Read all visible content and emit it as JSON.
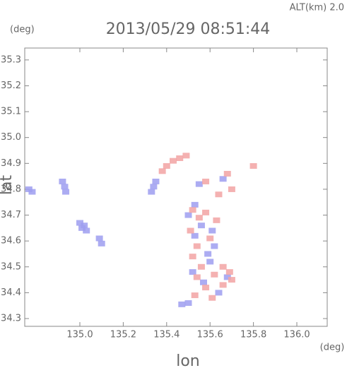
{
  "chart_data": {
    "type": "scatter",
    "title": "2013/05/29 08:51:44",
    "subtitle": "ALT(km) 2.0",
    "x_label": "lon",
    "x_unit": "(deg)",
    "y_label": "lat",
    "y_unit": "(deg)",
    "xlim": [
      134.746,
      136.14
    ],
    "ylim": [
      34.27,
      35.346
    ],
    "xticks": [
      {
        "value": 135.0,
        "label": "135.0"
      },
      135.2,
      135.4,
      135.6,
      135.8,
      {
        "value": 136.0,
        "label": "136.0"
      }
    ],
    "yticks": [
      34.3,
      34.4,
      34.5,
      34.6,
      34.7,
      34.8,
      34.9,
      {
        "value": 35.0,
        "label": "35.0"
      },
      35.1,
      35.2,
      35.3
    ],
    "series": [
      {
        "color": "#9d9df0",
        "x": [
          134.765,
          134.78,
          134.92,
          134.93,
          134.935,
          135.0,
          135.02,
          135.01,
          135.03,
          135.09,
          135.1,
          135.34,
          135.33,
          135.35,
          135.5,
          135.53,
          135.56,
          135.59,
          135.62,
          135.52,
          135.57,
          135.64,
          135.6,
          135.68,
          135.55,
          135.66,
          135.5,
          135.47,
          135.53,
          135.61
        ],
        "values": [
          34.8,
          34.79,
          34.83,
          34.81,
          34.79,
          34.67,
          34.66,
          34.65,
          34.64,
          34.61,
          34.59,
          34.81,
          34.79,
          34.83,
          34.7,
          34.62,
          34.66,
          34.55,
          34.58,
          34.48,
          34.44,
          34.4,
          34.52,
          34.46,
          34.82,
          34.84,
          34.36,
          34.355,
          34.74,
          34.64
        ]
      },
      {
        "color": "#f2a3a3",
        "x": [
          135.4,
          135.43,
          135.46,
          135.38,
          135.49,
          135.52,
          135.55,
          135.58,
          135.51,
          135.54,
          135.6,
          135.63,
          135.52,
          135.56,
          135.62,
          135.66,
          135.69,
          135.58,
          135.61,
          135.66,
          135.7,
          135.54,
          135.58,
          135.68,
          135.64,
          135.7,
          135.8,
          135.53
        ],
        "values": [
          34.89,
          34.91,
          34.92,
          34.87,
          34.93,
          34.72,
          34.69,
          34.71,
          34.64,
          34.58,
          34.61,
          34.68,
          34.54,
          34.5,
          34.47,
          34.5,
          34.48,
          34.42,
          34.38,
          34.43,
          34.45,
          34.46,
          34.83,
          34.86,
          34.78,
          34.8,
          34.89,
          34.39
        ]
      }
    ]
  }
}
